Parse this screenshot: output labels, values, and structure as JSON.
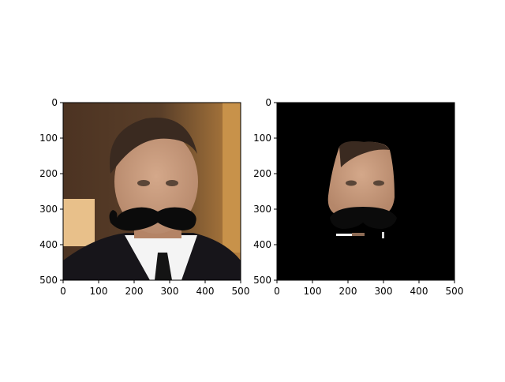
{
  "figure": {
    "background": "#ffffff"
  },
  "chart_data": [
    {
      "type": "image",
      "content": "photo of a man in a dark suit, white shirt and tie, with a black cartoon mustache overlaid",
      "title": "",
      "xlabel": "",
      "ylabel": "",
      "xlim": [
        0,
        500
      ],
      "ylim": [
        500,
        0
      ],
      "xticks": [
        0,
        100,
        200,
        300,
        400,
        500
      ],
      "yticks": [
        0,
        100,
        200,
        300,
        400,
        500
      ],
      "xtick_labels": [
        "0",
        "100",
        "200",
        "300",
        "400",
        "500"
      ],
      "ytick_labels": [
        "0",
        "100",
        "200",
        "300",
        "400",
        "500"
      ],
      "grid": false
    },
    {
      "type": "image",
      "content": "segmented face region with mustache on a black background",
      "title": "",
      "xlabel": "",
      "ylabel": "",
      "xlim": [
        0,
        500
      ],
      "ylim": [
        500,
        0
      ],
      "xticks": [
        0,
        100,
        200,
        300,
        400,
        500
      ],
      "yticks": [
        0,
        100,
        200,
        300,
        400,
        500
      ],
      "xtick_labels": [
        "0",
        "100",
        "200",
        "300",
        "400",
        "500"
      ],
      "ytick_labels": [
        "0",
        "100",
        "200",
        "300",
        "400",
        "500"
      ],
      "grid": false
    }
  ],
  "colors": {
    "axis": "#000000",
    "skin": "#c69a7f",
    "hair": "#3a2a20",
    "suit": "#17151a",
    "shirt": "#f4f4f4",
    "mustache": "#0b0b0b",
    "bg_left_wall": "#6b4a2e",
    "bg_right_wall": "#a8773d",
    "mask_bg": "#000000"
  }
}
